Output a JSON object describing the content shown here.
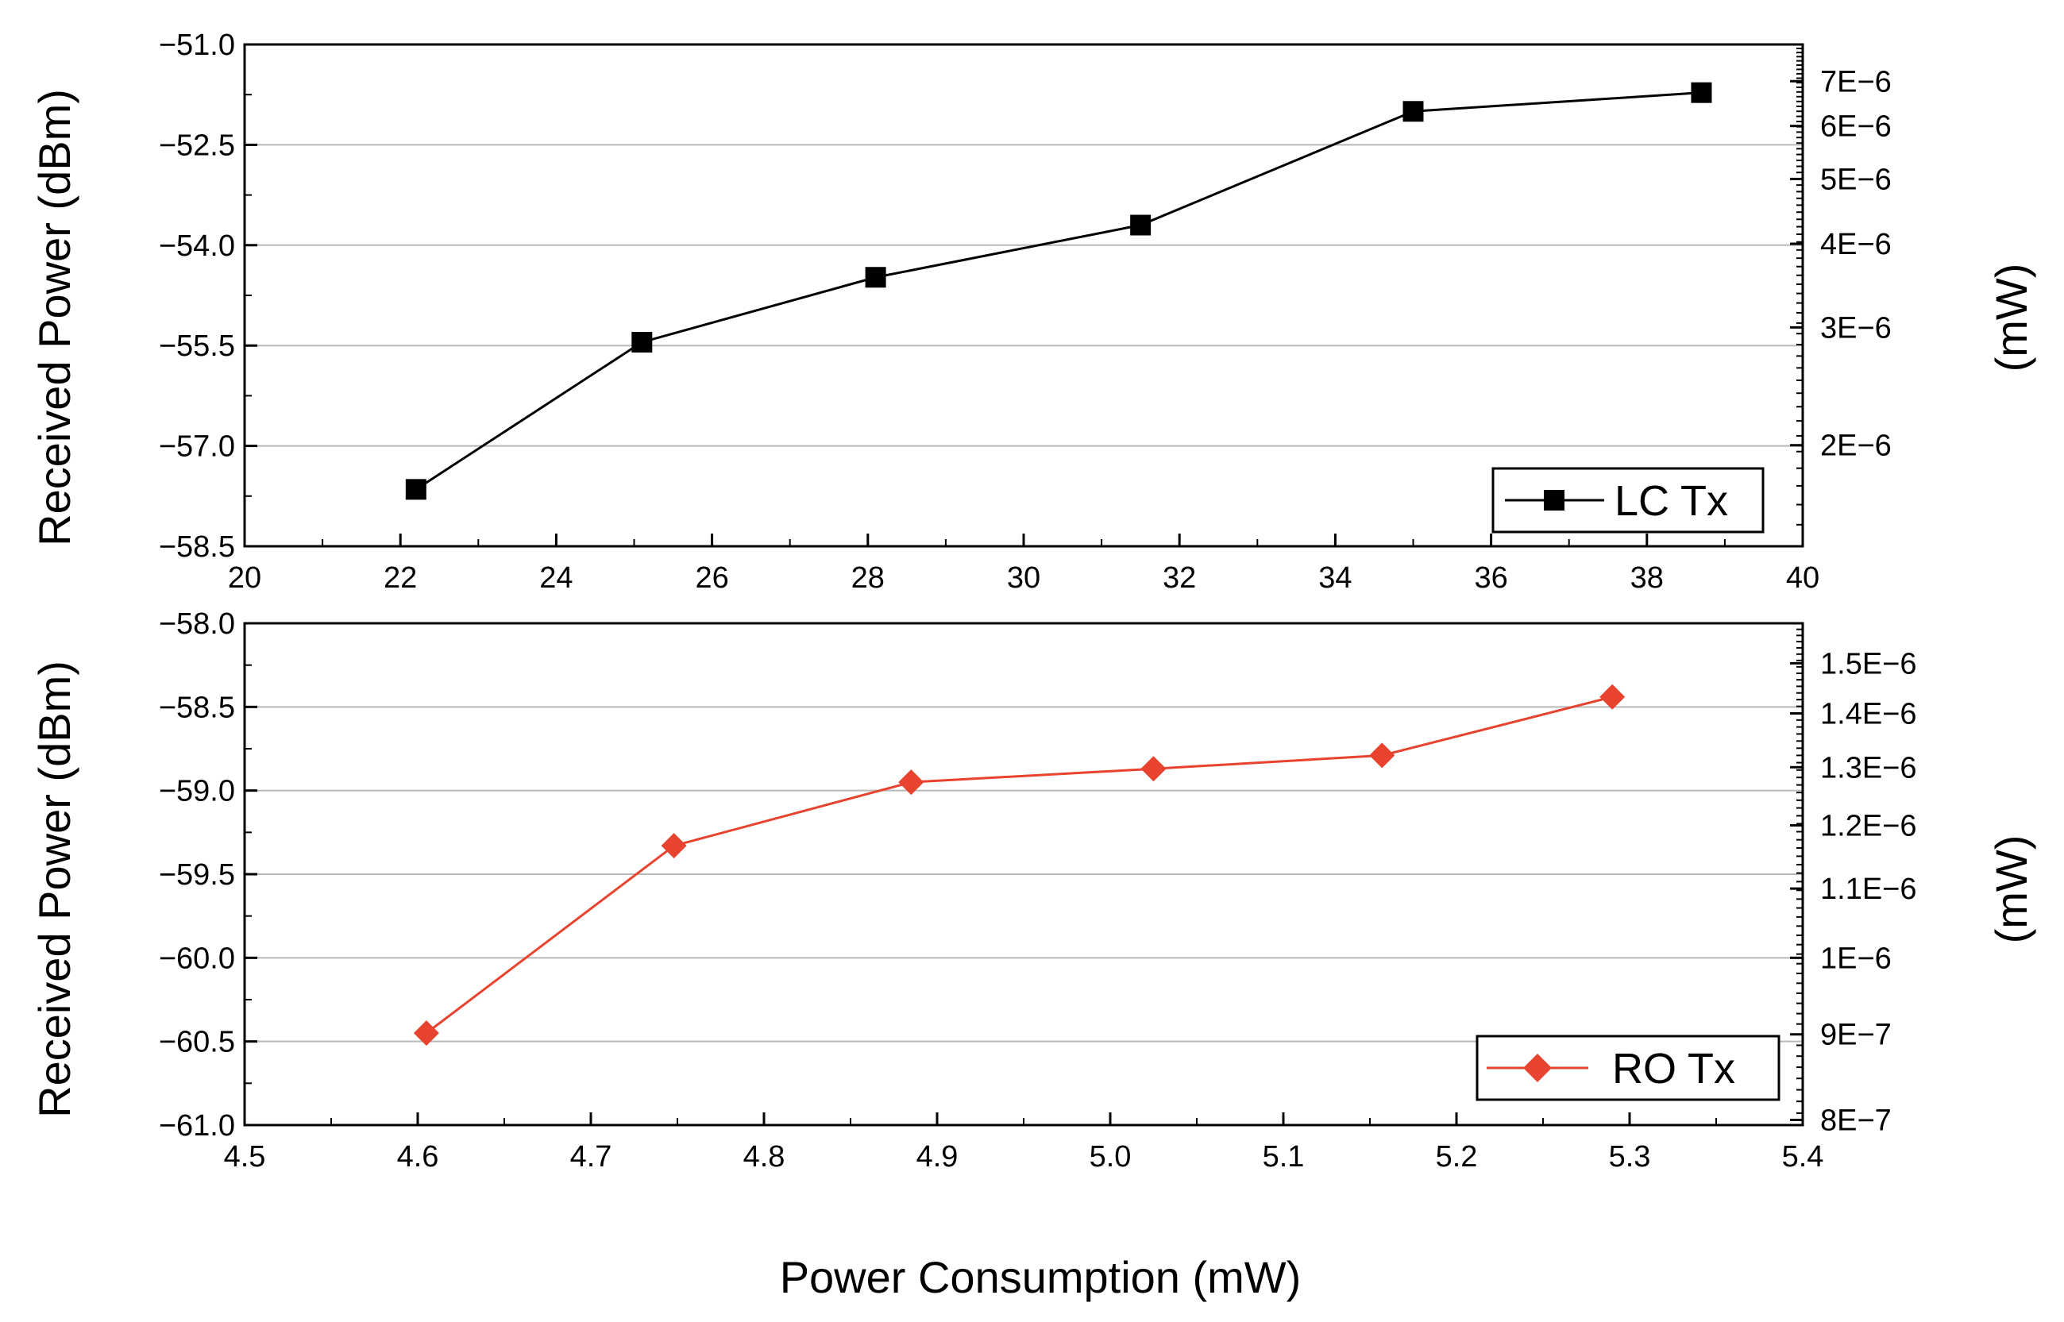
{
  "chart_data": [
    {
      "type": "line",
      "name": "lc",
      "x": [
        22.2,
        25.1,
        28.1,
        31.5,
        35.0,
        38.7
      ],
      "series": [
        {
          "name": "LC Tx",
          "values": [
            -57.65,
            -55.45,
            -54.48,
            -53.7,
            -52.0,
            -51.72
          ],
          "color": "#000000",
          "marker": "square"
        }
      ],
      "ylabel": "Received Power (dBm)",
      "y2label": "(mW)",
      "xlim": [
        20,
        40
      ],
      "ylim": [
        -58.5,
        -51.0
      ],
      "xticks": [
        20,
        22,
        24,
        26,
        28,
        30,
        32,
        34,
        36,
        38,
        40
      ],
      "yticks": [
        -51.0,
        -52.5,
        -54.0,
        -55.5,
        -57.0,
        -58.5
      ],
      "xtick_labels": [
        "20",
        "22",
        "24",
        "26",
        "28",
        "30",
        "32",
        "34",
        "36",
        "38",
        "40"
      ],
      "ytick_labels": [
        "−51.0",
        "−52.5",
        "−54.0",
        "−55.5",
        "−57.0",
        "−58.5"
      ],
      "y2ticks_mw": [
        7e-06,
        6e-06,
        5e-06,
        4e-06,
        3e-06,
        2e-06
      ],
      "y2tick_labels": [
        "7E−6",
        "6E−6",
        "5E−6",
        "4E−6",
        "3E−6",
        "2E−6"
      ],
      "legend_position": "bottom-right",
      "grid": true
    },
    {
      "type": "line",
      "name": "ro",
      "x": [
        4.605,
        4.748,
        4.885,
        5.025,
        5.157,
        5.29
      ],
      "series": [
        {
          "name": "RO Tx",
          "values": [
            -60.45,
            -59.33,
            -58.95,
            -58.87,
            -58.79,
            -58.44
          ],
          "color": "#e8432e",
          "marker": "diamond"
        }
      ],
      "xlabel": "Power Consumption (mW)",
      "ylabel": "Received Power (dBm)",
      "y2label": "(mW)",
      "xlim": [
        4.5,
        5.4
      ],
      "ylim": [
        -61.0,
        -58.0
      ],
      "xticks": [
        4.5,
        4.6,
        4.7,
        4.8,
        4.9,
        5.0,
        5.1,
        5.2,
        5.3,
        5.4
      ],
      "yticks": [
        -58.0,
        -58.5,
        -59.0,
        -59.5,
        -60.0,
        -60.5,
        -61.0
      ],
      "xtick_labels": [
        "4.5",
        "4.6",
        "4.7",
        "4.8",
        "4.9",
        "5.0",
        "5.1",
        "5.2",
        "5.3",
        "5.4"
      ],
      "ytick_labels": [
        "−58.0",
        "−58.5",
        "−59.0",
        "−59.5",
        "−60.0",
        "−60.5",
        "−61.0"
      ],
      "y2ticks_mw": [
        1.5e-06,
        1.4e-06,
        1.3e-06,
        1.2e-06,
        1.1e-06,
        1e-06,
        9e-07,
        8e-07
      ],
      "y2tick_labels": [
        "1.5E−6",
        "1.4E−6",
        "1.3E−6",
        "1.2E−6",
        "1.1E−6",
        "1E−6",
        "9E−7",
        "8E−7"
      ],
      "legend_position": "bottom-right",
      "grid": true
    }
  ]
}
